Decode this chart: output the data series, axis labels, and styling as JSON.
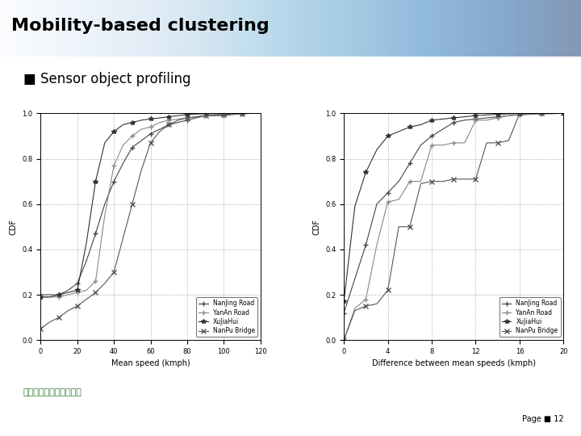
{
  "title": "Mobility-based clustering",
  "subtitle": "Sensor object profiling",
  "page": "Page ■ 12",
  "title_bg_color": "#b8cce4",
  "bg_color": "#ffffff",
  "legend_labels": [
    "NanJing Road",
    "YanAn Road",
    "XuJiaHui",
    "NanPu Bridge"
  ],
  "plot1": {
    "xlabel": "Mean speed (kmph)",
    "ylabel": "CDF",
    "xlim": [
      0,
      120
    ],
    "ylim": [
      0,
      1.0
    ],
    "xticks": [
      0,
      20,
      40,
      60,
      80,
      100,
      120
    ],
    "yticks": [
      0,
      0.2,
      0.4,
      0.6,
      0.8,
      1.0
    ],
    "series": {
      "NanJing Road": {
        "x": [
          0,
          5,
          10,
          15,
          20,
          25,
          30,
          35,
          40,
          45,
          50,
          55,
          60,
          65,
          70,
          75,
          80,
          85,
          90,
          95,
          100,
          105,
          110,
          115
        ],
        "y": [
          0.2,
          0.2,
          0.2,
          0.22,
          0.25,
          0.35,
          0.47,
          0.6,
          0.7,
          0.78,
          0.85,
          0.88,
          0.91,
          0.93,
          0.95,
          0.96,
          0.97,
          0.98,
          0.99,
          0.99,
          0.99,
          0.995,
          0.998,
          1.0
        ],
        "marker": "+",
        "color": "#444444"
      },
      "YanAn Road": {
        "x": [
          0,
          5,
          10,
          15,
          20,
          25,
          30,
          35,
          40,
          45,
          50,
          55,
          60,
          65,
          70,
          75,
          80,
          85,
          90,
          95,
          100,
          105,
          110,
          115
        ],
        "y": [
          0.19,
          0.19,
          0.19,
          0.2,
          0.21,
          0.22,
          0.26,
          0.55,
          0.77,
          0.86,
          0.9,
          0.93,
          0.94,
          0.96,
          0.97,
          0.975,
          0.98,
          0.985,
          0.99,
          0.993,
          0.996,
          0.998,
          0.999,
          1.0
        ],
        "marker": "+",
        "color": "#888888"
      },
      "XuJiaHui": {
        "x": [
          0,
          5,
          10,
          15,
          20,
          25,
          30,
          35,
          40,
          45,
          50,
          55,
          60,
          65,
          70,
          75,
          80,
          85,
          90,
          95,
          100,
          105,
          110
        ],
        "y": [
          0.19,
          0.19,
          0.2,
          0.21,
          0.22,
          0.43,
          0.7,
          0.87,
          0.92,
          0.95,
          0.96,
          0.97,
          0.975,
          0.98,
          0.985,
          0.99,
          0.995,
          0.997,
          0.998,
          0.999,
          0.999,
          1.0,
          1.0
        ],
        "marker": "*",
        "color": "#333333"
      },
      "NanPu Bridge": {
        "x": [
          0,
          5,
          10,
          15,
          20,
          25,
          30,
          35,
          40,
          45,
          50,
          55,
          60,
          65,
          70,
          75,
          80,
          85,
          90,
          95,
          100,
          105,
          110,
          115
        ],
        "y": [
          0.05,
          0.08,
          0.1,
          0.13,
          0.15,
          0.18,
          0.21,
          0.25,
          0.3,
          0.45,
          0.6,
          0.75,
          0.87,
          0.92,
          0.95,
          0.97,
          0.98,
          0.985,
          0.99,
          0.993,
          0.996,
          0.998,
          0.999,
          1.0
        ],
        "marker": "x",
        "color": "#555555"
      }
    }
  },
  "plot2": {
    "xlabel": "Difference between mean speeds (kmph)",
    "ylabel": "CDF",
    "xlim": [
      0,
      20
    ],
    "ylim": [
      0,
      1.0
    ],
    "xticks": [
      0,
      4,
      8,
      12,
      16,
      20
    ],
    "yticks": [
      0,
      0.2,
      0.4,
      0.6,
      0.8,
      1.0
    ],
    "series": {
      "NanJing Road": {
        "x": [
          0,
          1,
          2,
          3,
          4,
          5,
          6,
          7,
          8,
          9,
          10,
          11,
          12,
          13,
          14,
          15,
          16,
          17,
          18,
          19,
          20
        ],
        "y": [
          0.12,
          0.27,
          0.42,
          0.6,
          0.65,
          0.7,
          0.78,
          0.86,
          0.9,
          0.93,
          0.96,
          0.97,
          0.975,
          0.98,
          0.985,
          0.99,
          0.993,
          0.996,
          0.998,
          0.999,
          1.0
        ],
        "marker": "+",
        "color": "#444444"
      },
      "YanAn Road": {
        "x": [
          0,
          1,
          2,
          3,
          4,
          5,
          6,
          7,
          8,
          9,
          10,
          11,
          12,
          13,
          14,
          15,
          16,
          17,
          18,
          19,
          20
        ],
        "y": [
          0.0,
          0.14,
          0.18,
          0.42,
          0.61,
          0.62,
          0.7,
          0.7,
          0.86,
          0.86,
          0.87,
          0.87,
          0.97,
          0.97,
          0.98,
          0.99,
          0.995,
          0.998,
          0.999,
          0.999,
          1.0
        ],
        "marker": "+",
        "color": "#888888"
      },
      "XuJiaHui": {
        "x": [
          0,
          1,
          2,
          3,
          4,
          5,
          6,
          7,
          8,
          9,
          10,
          11,
          12,
          13,
          14,
          15,
          16,
          17,
          18,
          19,
          20
        ],
        "y": [
          0.17,
          0.59,
          0.74,
          0.84,
          0.9,
          0.92,
          0.94,
          0.95,
          0.97,
          0.975,
          0.98,
          0.985,
          0.99,
          0.993,
          0.996,
          0.998,
          0.999,
          1.0,
          1.0,
          1.0,
          1.0
        ],
        "marker": "*",
        "color": "#333333"
      },
      "NanPu Bridge": {
        "x": [
          0,
          1,
          2,
          3,
          4,
          5,
          6,
          7,
          8,
          9,
          10,
          11,
          12,
          13,
          14,
          15,
          16,
          17,
          18,
          19,
          20
        ],
        "y": [
          0.0,
          0.13,
          0.15,
          0.16,
          0.22,
          0.5,
          0.5,
          0.69,
          0.7,
          0.7,
          0.71,
          0.71,
          0.71,
          0.87,
          0.87,
          0.88,
          1.0,
          1.0,
          1.0,
          1.0,
          1.0
        ],
        "marker": "x",
        "color": "#555555"
      }
    }
  }
}
